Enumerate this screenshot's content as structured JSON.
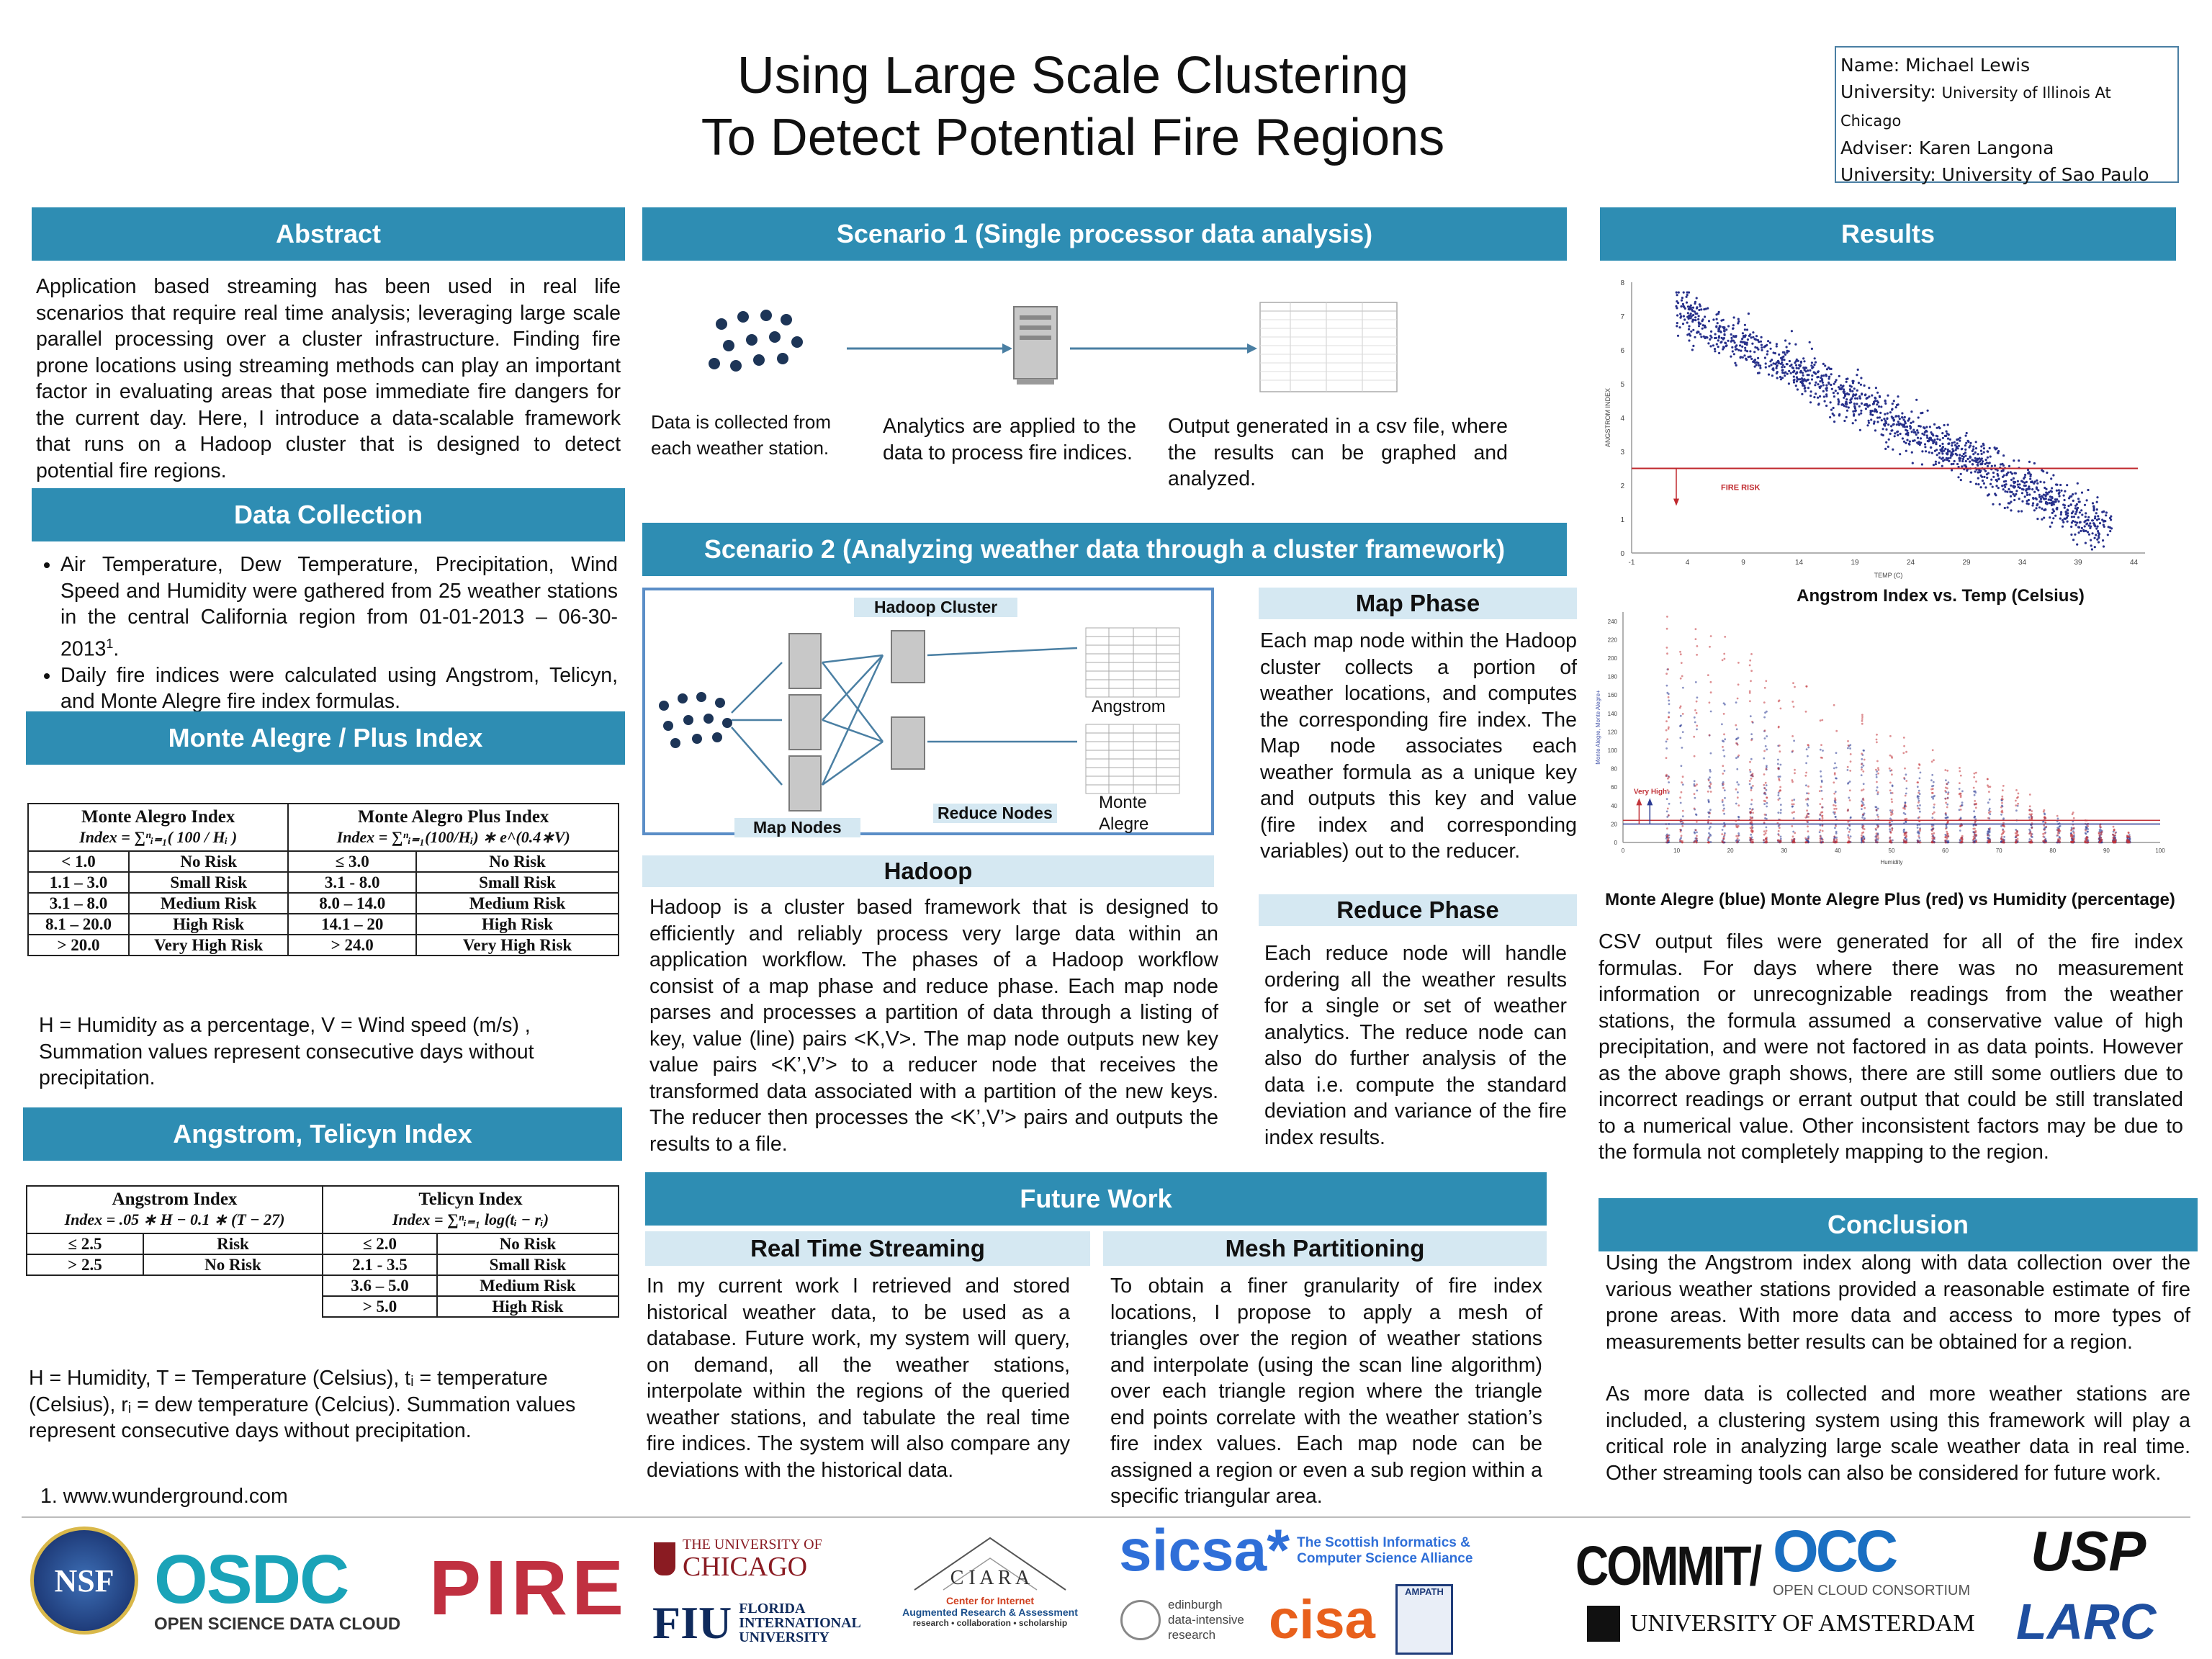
{
  "title": {
    "line1": "Using Large Scale Clustering",
    "line2": "To Detect Potential Fire Regions"
  },
  "info_box": {
    "name": "Name: Michael Lewis",
    "university_label": "University: ",
    "university_value": "University of Illinois At Chicago",
    "adviser": "Adviser: Karen Langona",
    "university2": "University: University of Sao Paulo"
  },
  "abstract": {
    "heading": "Abstract",
    "text": "Application based streaming has been used in real life scenarios that require real time analysis; leveraging large scale parallel processing over a cluster infrastructure. Finding fire prone locations using streaming methods can play an important factor in evaluating areas that pose immediate fire dangers for the current day. Here, I introduce a data-scalable framework that runs on a Hadoop cluster that is designed to detect potential fire regions."
  },
  "data_collection": {
    "heading": "Data Collection",
    "bullets": [
      "Air Temperature, Dew Temperature, Precipitation, Wind Speed and Humidity were gathered from 25 weather stations in the central California region from 01-01-2013 – 06-30-2013",
      "Daily fire indices were calculated using Angstrom, Telicyn, and Monte Alegre fire index formulas."
    ],
    "footnote_mark": "1",
    "bullet1_end": "."
  },
  "monte_alegre": {
    "heading": "Monte Alegre / Plus Index",
    "col1_title": "Monte Alegro Index",
    "col1_formula": "Index = ∑ⁿᵢ₌₁( 100 / Hᵢ )",
    "col2_title": "Monte Alegro Plus Index",
    "col2_formula": "Index = ∑ⁿᵢ₌₁(100/Hᵢ) ∗ e^(0.4∗V)",
    "rows": [
      [
        "< 1.0",
        "No Risk",
        "≤ 3.0",
        "No Risk"
      ],
      [
        "1.1 – 3.0",
        "Small Risk",
        "3.1  - 8.0",
        "Small Risk"
      ],
      [
        "3.1 – 8.0",
        "Medium Risk",
        "8.0 – 14.0",
        "Medium Risk"
      ],
      [
        "8.1 – 20.0",
        "High Risk",
        "14.1 – 20",
        "High Risk"
      ],
      [
        "> 20.0",
        "Very High Risk",
        "> 24.0",
        "Very High Risk"
      ]
    ],
    "note": "H = Humidity as a percentage, V = Wind speed (m/s) , Summation values represent consecutive days without precipitation."
  },
  "angstrom": {
    "heading": "Angstrom, Telicyn Index",
    "col1_title": "Angstrom Index",
    "col1_formula": "Index = .05 ∗ H − 0.1 ∗ (T − 27)",
    "col2_title": "Telicyn Index",
    "col2_formula": "Index = ∑ⁿᵢ₌₁ log(tᵢ − rᵢ)",
    "left_rows": [
      [
        "≤ 2.5",
        "Risk"
      ],
      [
        "> 2.5",
        "No Risk"
      ]
    ],
    "right_rows": [
      [
        "≤ 2.0",
        "No Risk"
      ],
      [
        "2.1  - 3.5",
        "Small Risk"
      ],
      [
        "3.6 – 5.0",
        "Medium Risk"
      ],
      [
        "> 5.0",
        "High Risk"
      ]
    ],
    "note": "H = Humidity, T = Temperature (Celsius), tᵢ = temperature (Celsius), rᵢ = dew temperature (Celcius). Summation values represent consecutive days without precipitation."
  },
  "reference": "1. www.wunderground.com",
  "scenario1": {
    "heading": "Scenario 1 (Single processor data analysis)",
    "cap1": "Data is collected from each weather station.",
    "cap2": "Analytics are applied to the data to process fire indices.",
    "cap3": "Output generated in a csv file, where the results can be graphed and analyzed."
  },
  "scenario2": {
    "heading": "Scenario 2 (Analyzing weather data through a cluster framework)",
    "hadoop_cluster": "Hadoop Cluster",
    "map_nodes": "Map Nodes",
    "reduce_nodes": "Reduce Nodes",
    "angstrom": "Angstrom",
    "monte": "Monte",
    "alegre": "Alegre"
  },
  "hadoop": {
    "heading": "Hadoop",
    "text": "Hadoop is a cluster based framework that is designed to efficiently and reliably process very large data within an application workflow. The phases of a Hadoop workflow consist of a map phase and reduce phase.  Each map node parses and processes a partition of data through a listing of key, value (line) pairs <K,V>.   The map node outputs new key value pairs <K’,V’> to a reducer node that receives the transformed data associated with a partition of the new keys. The reducer then processes the <K’,V’> pairs and outputs the results to a file."
  },
  "map_phase": {
    "heading": "Map Phase",
    "text": "Each map node within the Hadoop cluster collects a portion of weather locations, and computes the corresponding fire index. The Map node associates each weather formula as a unique key and outputs this key and value (fire index and corresponding variables) out to the reducer."
  },
  "reduce_phase": {
    "heading": "Reduce Phase",
    "text": "Each reduce node will handle ordering all the weather results for a single or set of weather analytics. The reduce node can also do further analysis of the data i.e. compute the standard deviation and variance of the fire index results."
  },
  "future_work": {
    "heading": "Future Work",
    "rts_heading": "Real Time Streaming",
    "rts_text": "In my current work I retrieved and stored historical weather data, to be used as a database. Future work, my system will query, on demand,  all the weather stations, interpolate within the regions of the queried weather stations, and tabulate the real time fire indices. The system will also compare any deviations with the historical data.",
    "mesh_heading": "Mesh Partitioning",
    "mesh_text": "To obtain a finer granularity of fire index locations, I propose to apply a mesh of triangles over the region of weather stations and interpolate (using the scan line algorithm)  over each triangle region where the triangle end points correlate with the weather station’s fire index values. Each map node can be assigned a region or even a sub region within a specific triangular area."
  },
  "results": {
    "heading": "Results",
    "chart1_caption": "Angstrom Index vs. Temp (Celsius)",
    "chart2_caption": "Monte Alegre (blue) Monte Alegre Plus (red) vs Humidity (percentage)",
    "text": "CSV output files were generated for all of the fire index formulas. For days where there was no measurement information or unrecognizable readings from the weather stations, the formula assumed a conservative value of high precipitation, and were not factored in as data points. However as the above graph shows, there are still some outliers due to incorrect readings or errant output that could be still translated to a numerical value. Other inconsistent factors may be due to the formula not completely mapping to the region."
  },
  "conclusion": {
    "heading": "Conclusion",
    "p1": "Using the Angstrom index along with data collection over the various weather stations provided a reasonable estimate of fire prone areas. With more data  and access to more types of measurements better results can be obtained for a region.",
    "p2": "As more data is collected and more weather stations are included, a clustering system using this framework will play a critical role in analyzing large scale weather data in real time. Other streaming tools can also be considered for future work."
  },
  "chart_data": [
    {
      "type": "scatter",
      "title": "",
      "xlabel": "TEMP (C)",
      "ylabel": "ANGSTROM INDEX",
      "xlim": [
        -1,
        45
      ],
      "ylim": [
        0,
        8
      ],
      "x_ticks": [
        -1,
        4,
        9,
        14,
        19,
        24,
        29,
        34,
        39,
        44
      ],
      "y_ticks": [
        0,
        1,
        2,
        3,
        4,
        5,
        6,
        7,
        8
      ],
      "threshold": 2.5,
      "annotation": "FIRE RISK",
      "trend": {
        "x_start": 3,
        "y_start": 7.2,
        "x_end": 42,
        "y_end": 0.6,
        "spread": 1.2
      },
      "point_count": 1400,
      "point_color": "#27308a",
      "threshold_color": "#c0282d"
    },
    {
      "type": "scatter",
      "title": "",
      "xlabel": "Humidity",
      "ylabel": "Monte Alegre, Monte Alegre+",
      "xlim": [
        0,
        100
      ],
      "ylim": [
        0,
        250
      ],
      "x_ticks": [
        0,
        10,
        20,
        30,
        40,
        50,
        60,
        70,
        80,
        90,
        100
      ],
      "y_ticks": [
        0,
        20,
        40,
        60,
        80,
        100,
        120,
        140,
        160,
        180,
        200,
        220,
        240
      ],
      "threshold": 20,
      "threshold2": 24,
      "annotation": "Very High",
      "series": [
        {
          "name": "Monte Alegre",
          "color": "#2c3b93"
        },
        {
          "name": "Monte Alegre Plus",
          "color": "#c2353b"
        }
      ],
      "point_count": 1800
    }
  ],
  "logos": {
    "nsf": "NSF",
    "osdc": "OSDC",
    "osdc_sub": "OPEN SCIENCE DATA CLOUD",
    "pire": "PIRE",
    "uchicago_small": "THE UNIVERSITY OF",
    "uchicago_big": "CHICAGO",
    "fiu": "FIU",
    "fiu_line1": "FLORIDA",
    "fiu_line2": "INTERNATIONAL",
    "fiu_line3": "UNIVERSITY",
    "ciara": "C I A R A",
    "ciara_sub1": "Center for Internet",
    "ciara_sub2": "Augmented Research & Assessment",
    "ciara_sub3": "research • collaboration • scholarship",
    "sicsa": "sicsa*",
    "sicsa_line1": "The Scottish Informatics &",
    "sicsa_line2": "Computer Science Alliance",
    "edinburgh1": "edinburgh",
    "edinburgh2": "data-intensive",
    "edinburgh3": "research",
    "cisa": "cisa",
    "ampath": "AMPATH",
    "commit": "COMMIT/",
    "occ": "OCC",
    "occ_sub": "OPEN CLOUD CONSORTIUM",
    "uva": "UNIVERSITY OF AMSTERDAM",
    "usp": "USP",
    "larc": "LARC"
  },
  "colors": {
    "accent": "#2e8db3",
    "subheader": "#d5e8f2"
  }
}
